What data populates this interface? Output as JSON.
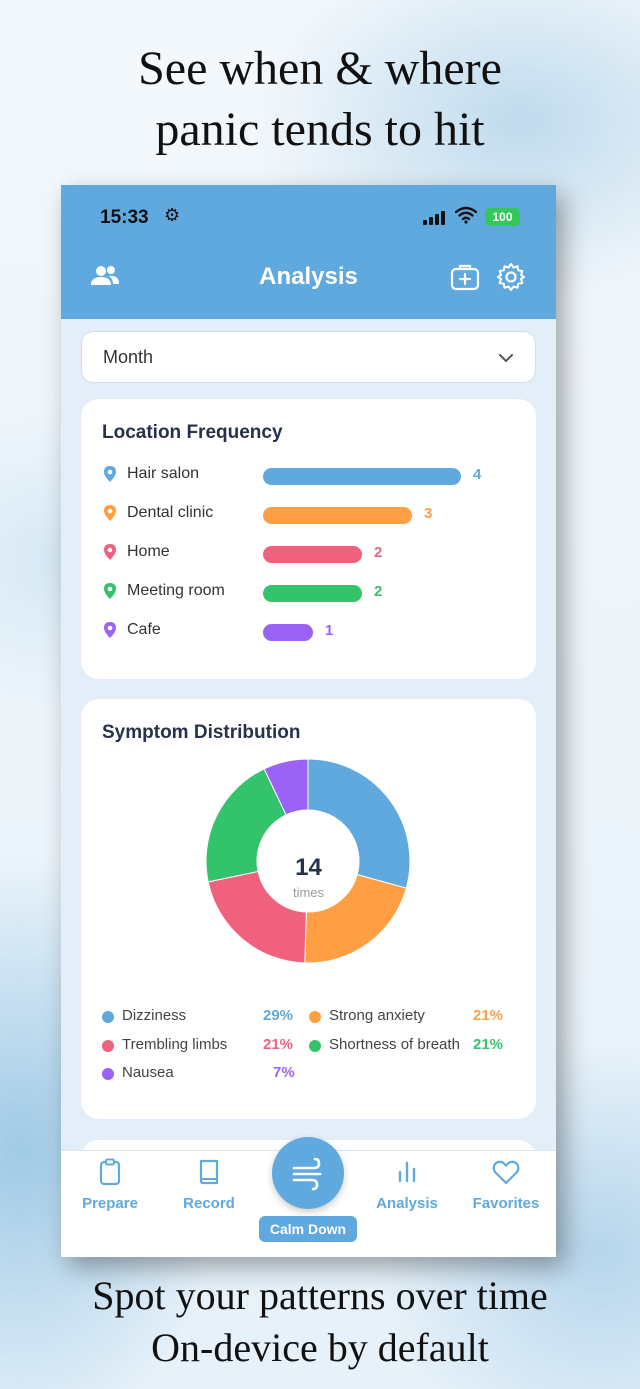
{
  "promo": {
    "headline_line1": "See when & where",
    "headline_line2": "panic tends to hit",
    "footer_line1": "Spot your patterns over time",
    "footer_line2": "On-device by default"
  },
  "status_bar": {
    "time": "15:33",
    "battery": "100"
  },
  "nav": {
    "title": "Analysis",
    "left_icon": "people-icon",
    "right_icons": [
      "medical-kit-icon",
      "gear-icon"
    ]
  },
  "filter": {
    "selected": "Month"
  },
  "location_card": {
    "title": "Location Frequency",
    "items": [
      {
        "name": "Hair salon",
        "count": 4,
        "color": "#5fa9df"
      },
      {
        "name": "Dental clinic",
        "count": 3,
        "color": "#ff9f43"
      },
      {
        "name": "Home",
        "count": 2,
        "color": "#f0617e"
      },
      {
        "name": "Meeting room",
        "count": 2,
        "color": "#33c36b"
      },
      {
        "name": "Cafe",
        "count": 1,
        "color": "#9b63f5"
      }
    ]
  },
  "symptom_card": {
    "title": "Symptom Distribution",
    "total": "14",
    "total_label": "times",
    "items": [
      {
        "name": "Dizziness",
        "pct": "29%",
        "value": 29,
        "color": "#5fa9df"
      },
      {
        "name": "Strong anxiety",
        "pct": "21%",
        "value": 21,
        "color": "#ff9f43"
      },
      {
        "name": "Trembling limbs",
        "pct": "21%",
        "value": 21,
        "color": "#f0617e"
      },
      {
        "name": "Shortness of breath",
        "pct": "21%",
        "value": 21,
        "color": "#33c36b"
      },
      {
        "name": "Nausea",
        "pct": "7%",
        "value": 7,
        "color": "#9b63f5"
      }
    ]
  },
  "tabs": {
    "prepare": "Prepare",
    "record": "Record",
    "calm_down": "Calm Down",
    "analysis": "Analysis",
    "favorites": "Favorites"
  },
  "colors": {
    "accent": "#5fa9df",
    "title_text": "#27324a"
  }
}
